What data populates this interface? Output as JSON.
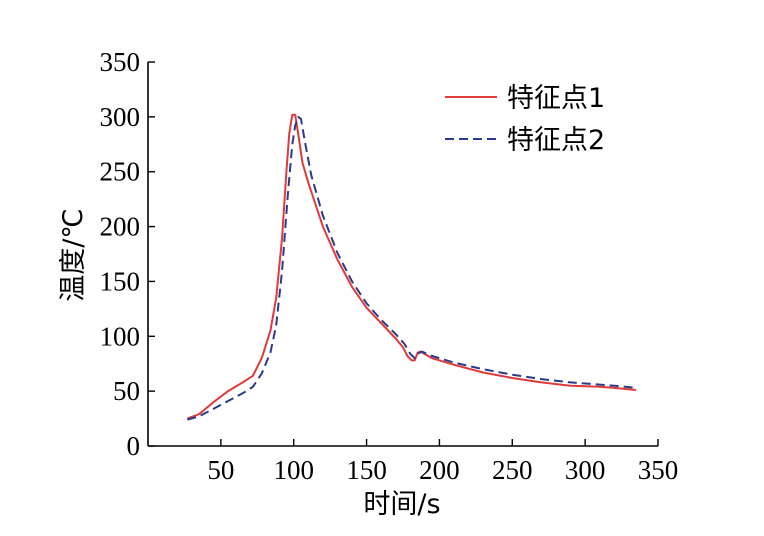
{
  "chart_data": {
    "type": "line",
    "title": "",
    "xlabel": "时间/s",
    "ylabel": "温度/℃",
    "xlim": [
      0,
      350
    ],
    "ylim": [
      0,
      350
    ],
    "x_ticks": [
      50,
      100,
      150,
      200,
      250,
      300,
      350
    ],
    "y_ticks": [
      0,
      50,
      100,
      150,
      200,
      250,
      300,
      350
    ],
    "grid": false,
    "legend_position": "top-right",
    "series": [
      {
        "name": "特征点1",
        "color": "#e03a3a",
        "style": "solid",
        "points": [
          [
            27,
            25
          ],
          [
            35,
            29
          ],
          [
            45,
            40
          ],
          [
            55,
            50
          ],
          [
            65,
            58
          ],
          [
            72,
            64
          ],
          [
            78,
            80
          ],
          [
            84,
            105
          ],
          [
            88,
            135
          ],
          [
            92,
            190
          ],
          [
            95,
            250
          ],
          [
            97,
            285
          ],
          [
            99,
            302
          ],
          [
            101,
            302
          ],
          [
            103,
            285
          ],
          [
            106,
            258
          ],
          [
            110,
            240
          ],
          [
            120,
            200
          ],
          [
            130,
            170
          ],
          [
            140,
            145
          ],
          [
            150,
            126
          ],
          [
            160,
            112
          ],
          [
            170,
            98
          ],
          [
            175,
            90
          ],
          [
            178,
            82
          ],
          [
            181,
            78
          ],
          [
            183,
            78
          ],
          [
            185,
            85
          ],
          [
            187,
            86
          ],
          [
            195,
            80
          ],
          [
            210,
            74
          ],
          [
            230,
            67
          ],
          [
            250,
            62
          ],
          [
            270,
            58
          ],
          [
            290,
            55
          ],
          [
            310,
            54
          ],
          [
            320,
            53
          ],
          [
            335,
            51
          ]
        ]
      },
      {
        "name": "特征点2",
        "color": "#2b3a8a",
        "style": "dashed",
        "points": [
          [
            27,
            24
          ],
          [
            35,
            27
          ],
          [
            45,
            34
          ],
          [
            55,
            41
          ],
          [
            65,
            48
          ],
          [
            72,
            54
          ],
          [
            78,
            66
          ],
          [
            84,
            85
          ],
          [
            88,
            110
          ],
          [
            92,
            160
          ],
          [
            96,
            230
          ],
          [
            99,
            275
          ],
          [
            101,
            292
          ],
          [
            103,
            300
          ],
          [
            105,
            298
          ],
          [
            108,
            275
          ],
          [
            112,
            247
          ],
          [
            120,
            210
          ],
          [
            130,
            176
          ],
          [
            140,
            150
          ],
          [
            150,
            130
          ],
          [
            160,
            115
          ],
          [
            170,
            102
          ],
          [
            176,
            93
          ],
          [
            180,
            84
          ],
          [
            183,
            80
          ],
          [
            185,
            84
          ],
          [
            188,
            86
          ],
          [
            195,
            82
          ],
          [
            210,
            76
          ],
          [
            230,
            70
          ],
          [
            250,
            65
          ],
          [
            270,
            61
          ],
          [
            290,
            58
          ],
          [
            310,
            56
          ],
          [
            320,
            55
          ],
          [
            335,
            53
          ]
        ]
      }
    ]
  }
}
